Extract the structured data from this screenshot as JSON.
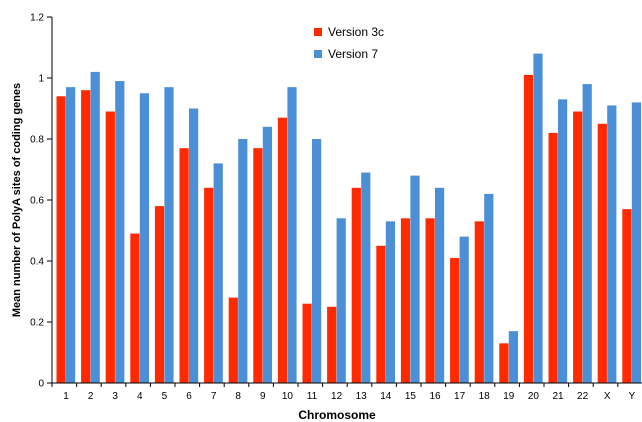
{
  "chart_data": {
    "type": "bar",
    "title": "",
    "xlabel": "Chromosome",
    "ylabel": "Mean number of PolyA sites of coding genes",
    "ylim": [
      0,
      1.2
    ],
    "yticks": [
      "0",
      "0.2",
      "0.4",
      "0.6",
      "0.8",
      "1",
      "1.2"
    ],
    "grid": false,
    "legend_position": "top-center",
    "categories": [
      "1",
      "2",
      "3",
      "4",
      "5",
      "6",
      "7",
      "8",
      "9",
      "10",
      "11",
      "12",
      "13",
      "14",
      "15",
      "16",
      "17",
      "18",
      "19",
      "20",
      "21",
      "22",
      "X",
      "Y"
    ],
    "series": [
      {
        "name": "Version 3c",
        "color": "#ff2a00",
        "values": [
          0.94,
          0.96,
          0.89,
          0.49,
          0.58,
          0.77,
          0.64,
          0.28,
          0.77,
          0.87,
          0.26,
          0.25,
          0.64,
          0.45,
          0.54,
          0.54,
          0.41,
          0.53,
          0.13,
          1.01,
          0.82,
          0.89,
          0.85,
          0.57
        ]
      },
      {
        "name": "Version 7",
        "color": "#4b8fd6",
        "values": [
          0.97,
          1.02,
          0.99,
          0.95,
          0.97,
          0.9,
          0.72,
          0.8,
          0.84,
          0.97,
          0.8,
          0.54,
          0.69,
          0.53,
          0.68,
          0.64,
          0.48,
          0.62,
          0.17,
          1.08,
          0.93,
          0.98,
          0.91,
          0.92
        ]
      }
    ]
  }
}
